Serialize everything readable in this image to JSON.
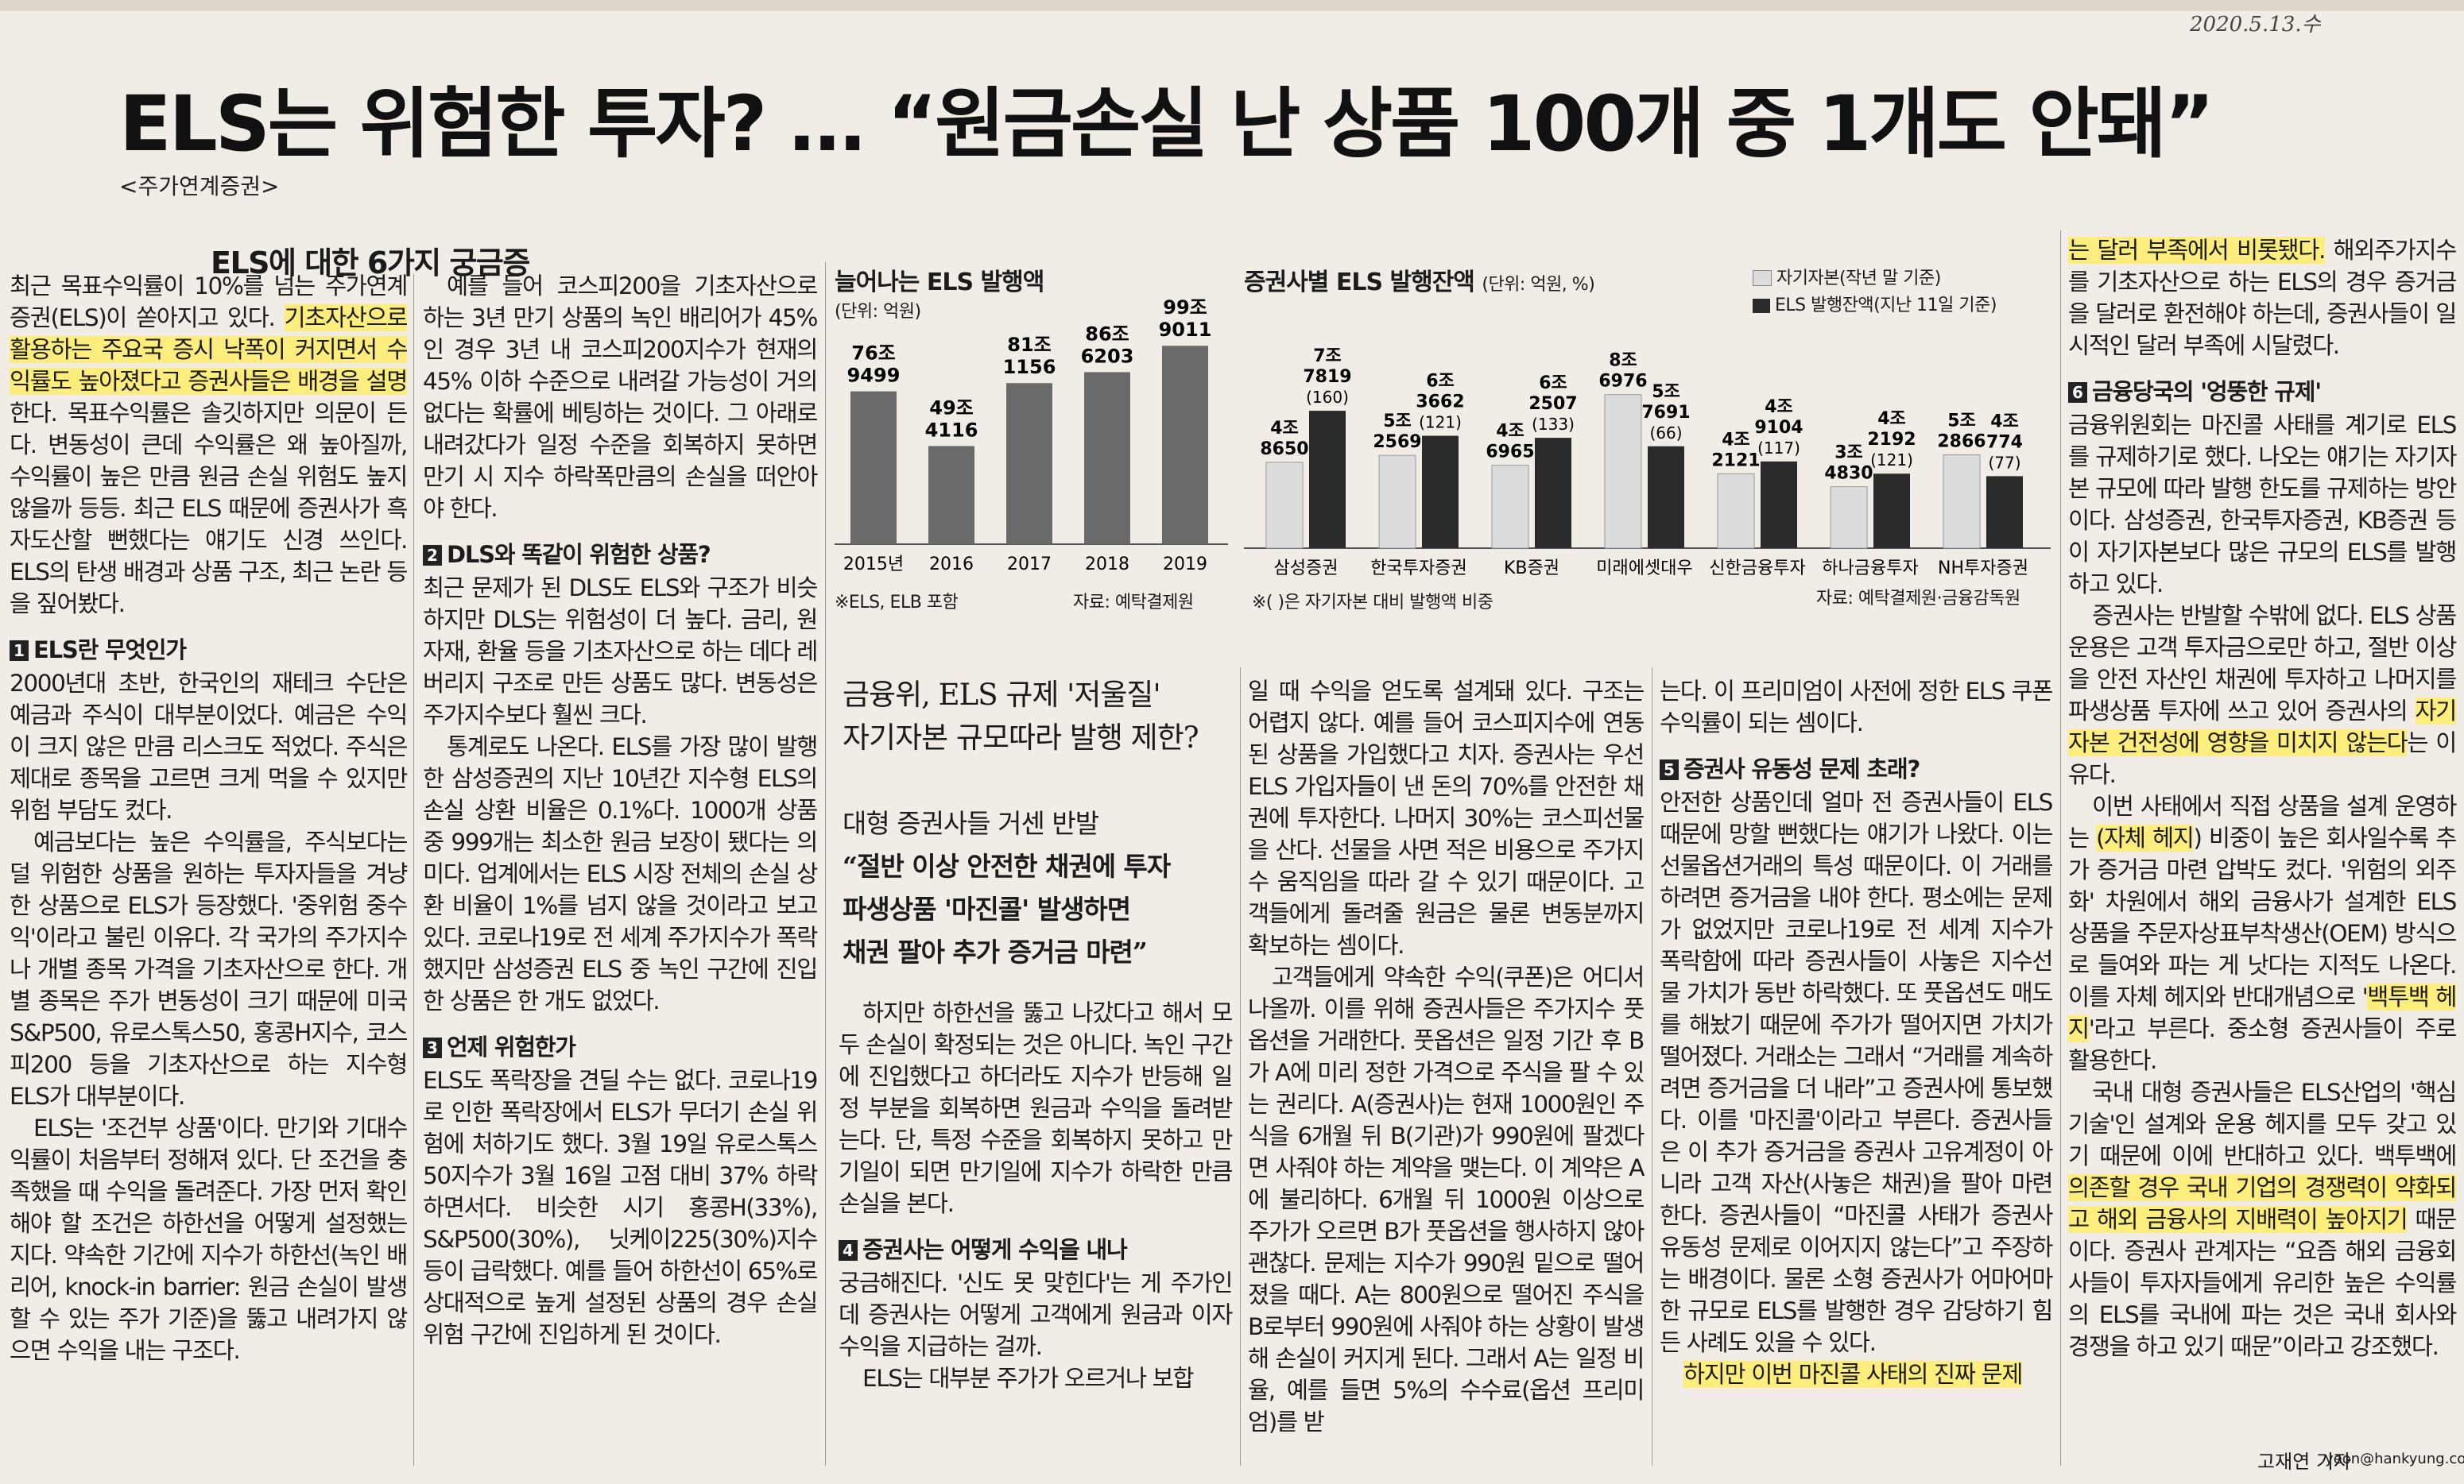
{
  "date_note": "2020.5.13.수",
  "headline": "ELS는 위험한 투자? … “원금손실 난 상품 100개 중 1개도 안돼”",
  "series_tag": "<주가연계증권>",
  "box_title": "ELS에 대한 6가지 궁금증",
  "col1": {
    "intro_pre": "최근 목표수익률이 10%를 넘는 주가연계증권(ELS)이 쏟아지고 있다. ",
    "intro_hl": "기초자산으로 활용하는 주요국 증시 낙폭이 커지면서 수익률도 높아졌다고 증권사들은 배경을 설명",
    "intro_post": "한다. 목표수익률은 솔깃하지만 의문이 든다. 변동성이 큰데 수익률은 왜 높아질까, 수익률이 높은 만큼 원금 손실 위험도 높지 않을까 등등. 최근 ELS 때문에 증권사가 흑자도산할 뻔했다는 얘기도 신경 쓰인다. ELS의 탄생 배경과 상품 구조, 최근 논란 등을 짚어봤다.",
    "q1": "ELS란 무엇인가",
    "q1_p1": "2000년대 초반, 한국인의 재테크 수단은 예금과 주식이 대부분이었다. 예금은 수익이 크지 않은 만큼 리스크도 적었다. 주식은 제대로 종목을 고르면 크게 먹을 수 있지만 위험 부담도 컸다.",
    "q1_p2": "예금보다는 높은 수익률을, 주식보다는 덜 위험한 상품을 원하는 투자자들을 겨냥한 상품으로 ELS가 등장했다. '중위험 중수익'이라고 불린 이유다. 각 국가의 주가지수나 개별 종목 가격을 기초자산으로 한다. 개별 종목은 주가 변동성이 크기 때문에 미국 S&P500, 유로스톡스50, 홍콩H지수, 코스피200 등을 기초자산으로 하는 지수형 ELS가 대부분이다.",
    "q1_p3": "ELS는 '조건부 상품'이다. 만기와 기대수익률이 처음부터 정해져 있다. 단 조건을 충족했을 때 수익을 돌려준다. 가장 먼저 확인해야 할 조건은 하한선을 어떻게 설정했는지다. 약속한 기간에 지수가 하한선(녹인 배리어, knock-in barrier: 원금 손실이 발생할 수 있는 주가 기준)을 뚫고 내려가지 않으면 수익을 내는 구조다."
  },
  "col2": {
    "p1": "예를 들어 코스피200을 기초자산으로 하는 3년 만기 상품의 녹인 배리어가 45%인 경우 3년 내 코스피200지수가 현재의 45% 이하 수준으로 내려갈 가능성이 거의 없다는 확률에 베팅하는 것이다. 그 아래로 내려갔다가 일정 수준을 회복하지 못하면 만기 시 지수 하락폭만큼의 손실을 떠안아야 한다.",
    "q2": "DLS와 똑같이 위험한 상품?",
    "q2_p1": "최근 문제가 된 DLS도 ELS와 구조가 비슷하지만 DLS는 위험성이 더 높다. 금리, 원자재, 환율 등을 기초자산으로 하는 데다 레버리지 구조로 만든 상품도 많다. 변동성은 주가지수보다 훨씬 크다.",
    "q2_p2": "통계로도 나온다. ELS를 가장 많이 발행한 삼성증권의 지난 10년간 지수형 ELS의 손실 상환 비율은 0.1%다. 1000개 상품 중 999개는 최소한 원금 보장이 됐다는 의미다. 업계에서는 ELS 시장 전체의 손실 상환 비율이 1%를 넘지 않을 것이라고 보고 있다. 코로나19로 전 세계 주가지수가 폭락했지만 삼성증권 ELS 중 녹인 구간에 진입한 상품은 한 개도 없었다.",
    "q3": "언제 위험한가",
    "q3_p1": "ELS도 폭락장을 견딜 수는 없다. 코로나19로 인한 폭락장에서 ELS가 무더기 손실 위험에 처하기도 했다. 3월 19일 유로스톡스50지수가 3월 16일 고점 대비 37% 하락하면서다. 비슷한 시기 홍콩H(33%), S&P500(30%), 닛케이225(30%)지수 등이 급락했다. 예를 들어 하한선이 65%로 상대적으로 높게 설정된 상품의 경우 손실 위험 구간에 진입하게 된 것이다."
  },
  "chart1": {
    "title": "늘어나는 ELS 발행액",
    "unit": "(단위: 억원)",
    "footnote": "※ELS, ELB 포함",
    "source": "자료: 예탁결제원"
  },
  "chart2": {
    "title": "증권사별 ELS 발행잔액",
    "unit": "(단위: 억원, %)",
    "legend1": "자기자본(작년 말 기준)",
    "legend2": "ELS 발행잔액(지난 11일 기준)",
    "footnote": "※( )은 자기자본 대비 발행액 비중",
    "source": "자료: 예탁결제원·금융감독원"
  },
  "chart_data": [
    {
      "type": "bar",
      "title": "늘어나는 ELS 발행액",
      "ylabel": "(단위: 억원)",
      "categories": [
        "2015년",
        "2016",
        "2017",
        "2018",
        "2019"
      ],
      "values": [
        769499,
        494116,
        811156,
        866203,
        999011
      ],
      "value_labels": [
        [
          "76조",
          "9499"
        ],
        [
          "49조",
          "4116"
        ],
        [
          "81조",
          "1156"
        ],
        [
          "86조",
          "6203"
        ],
        [
          "99조",
          "9011"
        ]
      ],
      "ylim": [
        0,
        1000000
      ],
      "color": "#6a6a6a"
    },
    {
      "type": "bar",
      "title": "증권사별 ELS 발행잔액",
      "ylabel": "(단위: 억원, %)",
      "categories": [
        "삼성증권",
        "한국투자증권",
        "KB증권",
        "미래에셋대우",
        "신한금융투자",
        "하나금융투자",
        "NH투자증권"
      ],
      "series": [
        {
          "name": "자기자본(작년 말 기준)",
          "values": [
            48650,
            52569,
            46965,
            86976,
            42121,
            34830,
            52866
          ],
          "value_labels": [
            [
              "4조",
              "8650"
            ],
            [
              "5조",
              "2569"
            ],
            [
              "4조",
              "6965"
            ],
            [
              "8조",
              "6976"
            ],
            [
              "4조",
              "2121"
            ],
            [
              "3조",
              "4830"
            ],
            [
              "5조",
              "2866"
            ]
          ],
          "color": "#dcdcdc"
        },
        {
          "name": "ELS 발행잔액(지난 11일 기준)",
          "values": [
            77819,
            63662,
            62507,
            57691,
            49104,
            42192,
            40774
          ],
          "value_labels": [
            [
              "7조",
              "7819"
            ],
            [
              "6조",
              "3662"
            ],
            [
              "6조",
              "2507"
            ],
            [
              "5조",
              "7691"
            ],
            [
              "4조",
              "9104"
            ],
            [
              "4조",
              "2192"
            ],
            [
              "4조",
              "774"
            ]
          ],
          "ratios": [
            "(160)",
            "(121)",
            "(133)",
            "(66)",
            "(117)",
            "(121)",
            "(77)"
          ],
          "color": "#2b2b2b"
        }
      ],
      "ylim": [
        0,
        90000
      ]
    }
  ],
  "sidebar": {
    "h1": "금융위, ELS 규제 '저울질'",
    "h2": "자기자본 규모따라 발행 제한?",
    "h3": "대형 증권사들 거센 반발",
    "h4": "“절반 이상 안전한 채권에 투자",
    "h5": "파생상품 '마진콜' 발생하면",
    "h6": "채권 팔아 추가 증거금 마련”"
  },
  "col3": {
    "p1": "하지만 하한선을 뚫고 나갔다고 해서 모두 손실이 확정되는 것은 아니다. 녹인 구간에 진입했다고 하더라도 지수가 반등해 일정 부분을 회복하면 원금과 수익을 돌려받는다. 단, 특정 수준을 회복하지 못하고 만기일이 되면 만기일에 지수가 하락한 만큼 손실을 본다.",
    "q4": "증권사는 어떻게 수익을 내나",
    "q4_p1": "궁금해진다. '신도 못 맞힌다'는 게 주가인데 증권사는 어떻게 고객에게 원금과 이자수익을 지급하는 걸까.",
    "q4_p2": "ELS는 대부분 주가가 오르거나 보합"
  },
  "col4": {
    "p1": "일 때 수익을 얻도록 설계돼 있다. 구조는 어렵지 않다. 예를 들어 코스피지수에 연동된 상품을 가입했다고 치자. 증권사는 우선 ELS 가입자들이 낸 돈의 70%를 안전한 채권에 투자한다. 나머지 30%는 코스피선물을 산다. 선물을 사면 적은 비용으로 주가지수 움직임을 따라 갈 수 있기 때문이다. 고객들에게 돌려줄 원금은 물론 변동분까지 확보하는 셈이다.",
    "p2": "고객들에게 약속한 수익(쿠폰)은 어디서 나올까. 이를 위해 증권사들은 주가지수 풋옵션을 거래한다. 풋옵션은 일정 기간 후 B가 A에 미리 정한 가격으로 주식을 팔 수 있는 권리다. A(증권사)는 현재 1000원인 주식을 6개월 뒤 B(기관)가 990원에 팔겠다면 사줘야 하는 계약을 맺는다. 이 계약은 A에 불리하다. 6개월 뒤 1000원 이상으로 주가가 오르면 B가 풋옵션을 행사하지 않아 괜찮다. 문제는 지수가 990원 밑으로 떨어졌을 때다. A는 800원으로 떨어진 주식을 B로부터 990원에 사줘야 하는 상황이 발생해 손실이 커지게 된다. 그래서 A는 일정 비율, 예를 들면 5%의 수수료(옵션 프리미엄)를 받"
  },
  "col5": {
    "p1": "는다. 이 프리미엄이 사전에 정한 ELS 쿠폰 수익률이 되는 셈이다.",
    "q5": "증권사 유동성 문제 초래?",
    "q5_p1": "안전한 상품인데 얼마 전 증권사들이 ELS 때문에 망할 뻔했다는 얘기가 나왔다. 이는 선물옵션거래의 특성 때문이다. 이 거래를 하려면 증거금을 내야 한다. 평소에는 문제가 없었지만 코로나19로 전 세계 지수가 폭락함에 따라 증권사들이 사놓은 지수선물 가치가 동반 하락했다. 또 풋옵션도 매도를 해놨기 때문에 주가가 떨어지면 가치가 떨어졌다. 거래소는 그래서 “거래를 계속하려면 증거금을 더 내라”고 증권사에 통보했다. 이를 '마진콜'이라고 부른다. 증권사들은 이 추가 증거금을 증권사 고유계정이 아니라 고객 자산(사놓은 채권)을 팔아 마련한다. 증권사들이 “마진콜 사태가 증권사 유동성 문제로 이어지지 않는다”고 주장하는 배경이다. 물론 소형 증권사가 어마어마한 규모로 ELS를 발행한 경우 감당하기 힘든 사례도 있을 수 있다.",
    "tail_hl": "하지만 이번 마진콜 사태의 진짜 문제"
  },
  "col6": {
    "p1_hl": "는 달러 부족에서 비롯됐다.",
    "p1_post": " 해외주가지수를 기초자산으로 하는 ELS의 경우 증거금을 달러로 환전해야 하는데, 증권사들이 일시적인 달러 부족에 시달렸다.",
    "q6": "금융당국의 '엉뚱한 규제'",
    "q6_p1": "금융위원회는 마진콜 사태를 계기로 ELS를 규제하기로 했다. 나오는 얘기는 자기자본 규모에 따라 발행 한도를 규제하는 방안이다. 삼성증권, 한국투자증권, KB증권 등이 자기자본보다 많은 규모의 ELS를 발행하고 있다.",
    "q6_p2_pre": "증권사는 반발할 수밖에 없다. ELS 상품 운용은 고객 투자금으로만 하고, 절반 이상을 안전 자산인 채권에 투자하고 나머지를 파생상품 투자에 쓰고 있어 증권사의 ",
    "q6_p2_hl": "자기자본 건전성에 영향을 미치지 않는다",
    "q6_p2_post": "는 이유다.",
    "q6_p3_pre": "이번 사태에서 직접 상품을 설계 운영하는 ",
    "q6_p3_hl": "(자체 헤지",
    "q6_p3_post": ") 비중이 높은 회사일수록 추가 증거금 마련 압박도 컸다. '위험의 외주화' 차원에서 해외 금융사가 설계한 ELS 상품을 주문자상표부착생산(OEM) 방식으로 들여와 파는 게 낫다는 지적도 나온다. 이를 자체 헤지와 반대개념으로 '",
    "q6_p3_hl2": "백투백 헤지",
    "q6_p3_post2": "'라고 부른다. 중소형 증권사들이 주로 활용한다.",
    "q6_p4_pre": "국내 대형 증권사들은 ELS산업의 '핵심기술'인 설계와 운용 헤지를 모두 갖고 있기 때문에 이에 반대하고 있다. 백투백에 ",
    "q6_p4_hl": "의존할 경우 국내 기업의 경쟁력이 약화되고 해외 금융사의 지배력이 높아지기",
    "q6_p4_post": " 때문이다. 증권사 관계자는 “요즘 해외 금융회사들이 투자자들에게 유리한 높은 수익률의 ELS를 국내에 파는 것은 국내 회사와 경쟁을 하고 있기 때문”이라고 강조했다."
  },
  "byline": "고재연 기자",
  "email": "yeon@hankyung.com"
}
